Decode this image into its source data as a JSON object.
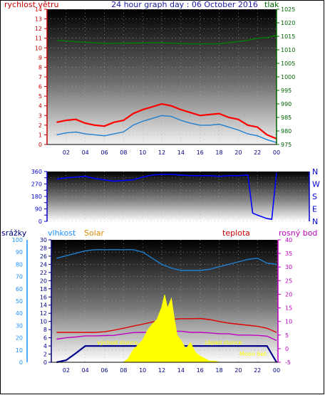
{
  "chart_data": [
    {
      "type": "line",
      "title": "24 hour graph day : 06 October 2016",
      "ylabel": "rychlost větru",
      "y2label": "tlak",
      "x_ticks": [
        "02",
        "04",
        "06",
        "08",
        "10",
        "12",
        "14",
        "16",
        "18",
        "20",
        "22",
        "00"
      ],
      "ylim": [
        0,
        14
      ],
      "y_ticks": [
        0,
        1,
        2,
        3,
        4,
        5,
        6,
        7,
        8,
        9,
        10,
        11,
        12,
        13,
        14
      ],
      "y2lim": [
        975,
        1025
      ],
      "y2_ticks": [
        975,
        980,
        985,
        990,
        995,
        1000,
        1005,
        1010,
        1015,
        1020,
        1025
      ],
      "series": [
        {
          "color": "#ff0000",
          "x": [
            1,
            2,
            3,
            4,
            5,
            6,
            7,
            8,
            9,
            10,
            11,
            12,
            13,
            14,
            15,
            16,
            17,
            18,
            19,
            20,
            21,
            22,
            23,
            24
          ],
          "y": [
            2.3,
            2.5,
            2.6,
            2.2,
            2.0,
            1.9,
            2.3,
            2.5,
            3.2,
            3.6,
            3.9,
            4.2,
            4.0,
            3.6,
            3.3,
            3.0,
            3.1,
            3.2,
            2.8,
            2.6,
            2.0,
            1.8,
            1.0,
            0.6
          ]
        },
        {
          "color": "#1e7fd0",
          "x": [
            1,
            2,
            3,
            4,
            5,
            6,
            7,
            8,
            9,
            10,
            11,
            12,
            13,
            14,
            15,
            16,
            17,
            18,
            19,
            20,
            21,
            22,
            23,
            24
          ],
          "y": [
            1.0,
            1.2,
            1.3,
            1.1,
            1.0,
            0.9,
            1.1,
            1.3,
            2.0,
            2.4,
            2.7,
            3.0,
            2.9,
            2.5,
            2.2,
            2.0,
            2.0,
            2.1,
            1.8,
            1.5,
            1.1,
            0.9,
            0.5,
            0.2
          ]
        },
        {
          "color": "#008000",
          "axis": "right",
          "x": [
            1,
            3,
            6,
            9,
            12,
            15,
            18,
            21,
            22,
            23,
            24
          ],
          "y": [
            1013.5,
            1013.0,
            1012.4,
            1012.5,
            1012.6,
            1012.2,
            1012.2,
            1013.5,
            1014.3,
            1014.5,
            1015.4
          ]
        }
      ]
    },
    {
      "type": "line",
      "right_labels": [
        "N",
        "W",
        "S",
        "E",
        "N"
      ],
      "ylim": [
        0,
        360
      ],
      "y_ticks": [
        0,
        45,
        90,
        135,
        180,
        225,
        270,
        315,
        360
      ],
      "y_tick_labels": [
        "0",
        "90",
        "180",
        "270",
        "360"
      ],
      "x_ticks": [
        "02",
        "04",
        "06",
        "08",
        "10",
        "12",
        "14",
        "16",
        "18",
        "20",
        "22",
        "00"
      ],
      "series": [
        {
          "color": "#0000ff",
          "x": [
            1,
            2,
            3,
            4,
            5,
            6,
            7,
            8,
            9,
            10,
            11,
            12,
            13,
            14,
            15,
            16,
            17,
            18,
            19,
            20,
            21,
            21.5,
            22,
            23,
            23.5,
            24
          ],
          "y": [
            305,
            315,
            320,
            325,
            310,
            300,
            290,
            295,
            300,
            320,
            335,
            340,
            340,
            335,
            330,
            330,
            330,
            325,
            330,
            330,
            335,
            60,
            45,
            20,
            15,
            350
          ]
        }
      ]
    },
    {
      "type": "line",
      "labels": {
        "rain": "srážky",
        "humidity": "vlhkost",
        "solar": "Solar",
        "temperature": "teplota",
        "dewpoint": "rosný bod"
      },
      "x_ticks": [
        "02",
        "04",
        "06",
        "08",
        "10",
        "12",
        "14",
        "16",
        "18",
        "20",
        "22",
        "00"
      ],
      "solar_ticks": [
        0,
        10,
        20,
        30,
        40,
        50,
        60,
        70,
        80,
        90,
        100
      ],
      "rain_ticks": [
        0,
        2,
        4,
        6,
        8,
        10,
        12,
        14,
        16,
        18,
        20,
        22,
        24,
        26,
        28,
        30
      ],
      "temp_ticks": [
        -5,
        0,
        5,
        10,
        15,
        20,
        25,
        30,
        35,
        40
      ],
      "annotations": [
        "východ slunce",
        "západ slunce",
        "Moon Set"
      ],
      "series": [
        {
          "name": "vlhkost",
          "color": "#1e7fd0",
          "x": [
            1,
            2,
            3,
            4,
            5,
            6,
            7,
            8,
            9,
            10,
            11,
            12,
            13,
            14,
            15,
            16,
            17,
            18,
            19,
            20,
            21,
            22,
            23,
            24
          ],
          "y": [
            85,
            87,
            89,
            91,
            92,
            92,
            92,
            92,
            92,
            90,
            85,
            80,
            77,
            75,
            75,
            75,
            76,
            78,
            80,
            82,
            84,
            85,
            81,
            80
          ]
        },
        {
          "name": "teplota",
          "color": "#e00000",
          "x": [
            1,
            2,
            3,
            4,
            5,
            6,
            7,
            8,
            9,
            10,
            11,
            12,
            13,
            14,
            15,
            16,
            17,
            18,
            19,
            20,
            21,
            22,
            23,
            24
          ],
          "y": [
            6.0,
            6.0,
            6.0,
            6.0,
            6.0,
            6.2,
            6.8,
            7.5,
            8.3,
            9.0,
            9.8,
            10.4,
            10.8,
            11.0,
            11.0,
            11.1,
            10.7,
            10.0,
            9.4,
            9.0,
            8.6,
            8.2,
            7.5,
            6.0
          ]
        },
        {
          "name": "rosný bod",
          "color": "#c000c0",
          "x": [
            1,
            2,
            3,
            4,
            5,
            6,
            7,
            8,
            9,
            10,
            11,
            12,
            13,
            14,
            15,
            16,
            17,
            18,
            19,
            20,
            21,
            22,
            23,
            24
          ],
          "y": [
            3.5,
            4.0,
            4.3,
            4.7,
            4.7,
            4.8,
            4.9,
            5.4,
            5.9,
            6.0,
            6.0,
            6.2,
            6.4,
            6.4,
            6.0,
            6.0,
            5.8,
            5.5,
            5.5,
            5.0,
            5.0,
            4.9,
            4.6,
            3.0
          ]
        },
        {
          "name": "srážky",
          "color": "#00008b",
          "x": [
            1,
            2,
            3,
            4,
            5,
            6,
            7,
            8,
            9,
            10,
            11,
            12,
            13,
            14,
            15,
            16,
            17,
            18,
            19,
            20,
            21,
            22,
            23,
            24
          ],
          "y": [
            0.0,
            0.5,
            2.2,
            4.0,
            4.0,
            4.0,
            4.0,
            4.0,
            4.0,
            4.0,
            4.0,
            4.0,
            4.0,
            4.0,
            4.0,
            4.0,
            4.0,
            4.0,
            4.0,
            4.0,
            4.0,
            4.0,
            4.0,
            0.0
          ]
        },
        {
          "name": "Solar",
          "color": "#ffff00",
          "x": [
            8,
            8.5,
            9,
            9.5,
            10,
            10.5,
            11,
            11.5,
            12,
            12.3,
            12.6,
            13,
            13.3,
            13.6,
            14,
            14.5,
            15,
            15.5,
            16,
            16.5,
            17,
            17.5,
            18
          ],
          "y": [
            0,
            3,
            10,
            14,
            18,
            26,
            31,
            35,
            45,
            55,
            44,
            52,
            36,
            22,
            18,
            11,
            16,
            8,
            5,
            3,
            1,
            1,
            0
          ]
        }
      ]
    }
  ]
}
